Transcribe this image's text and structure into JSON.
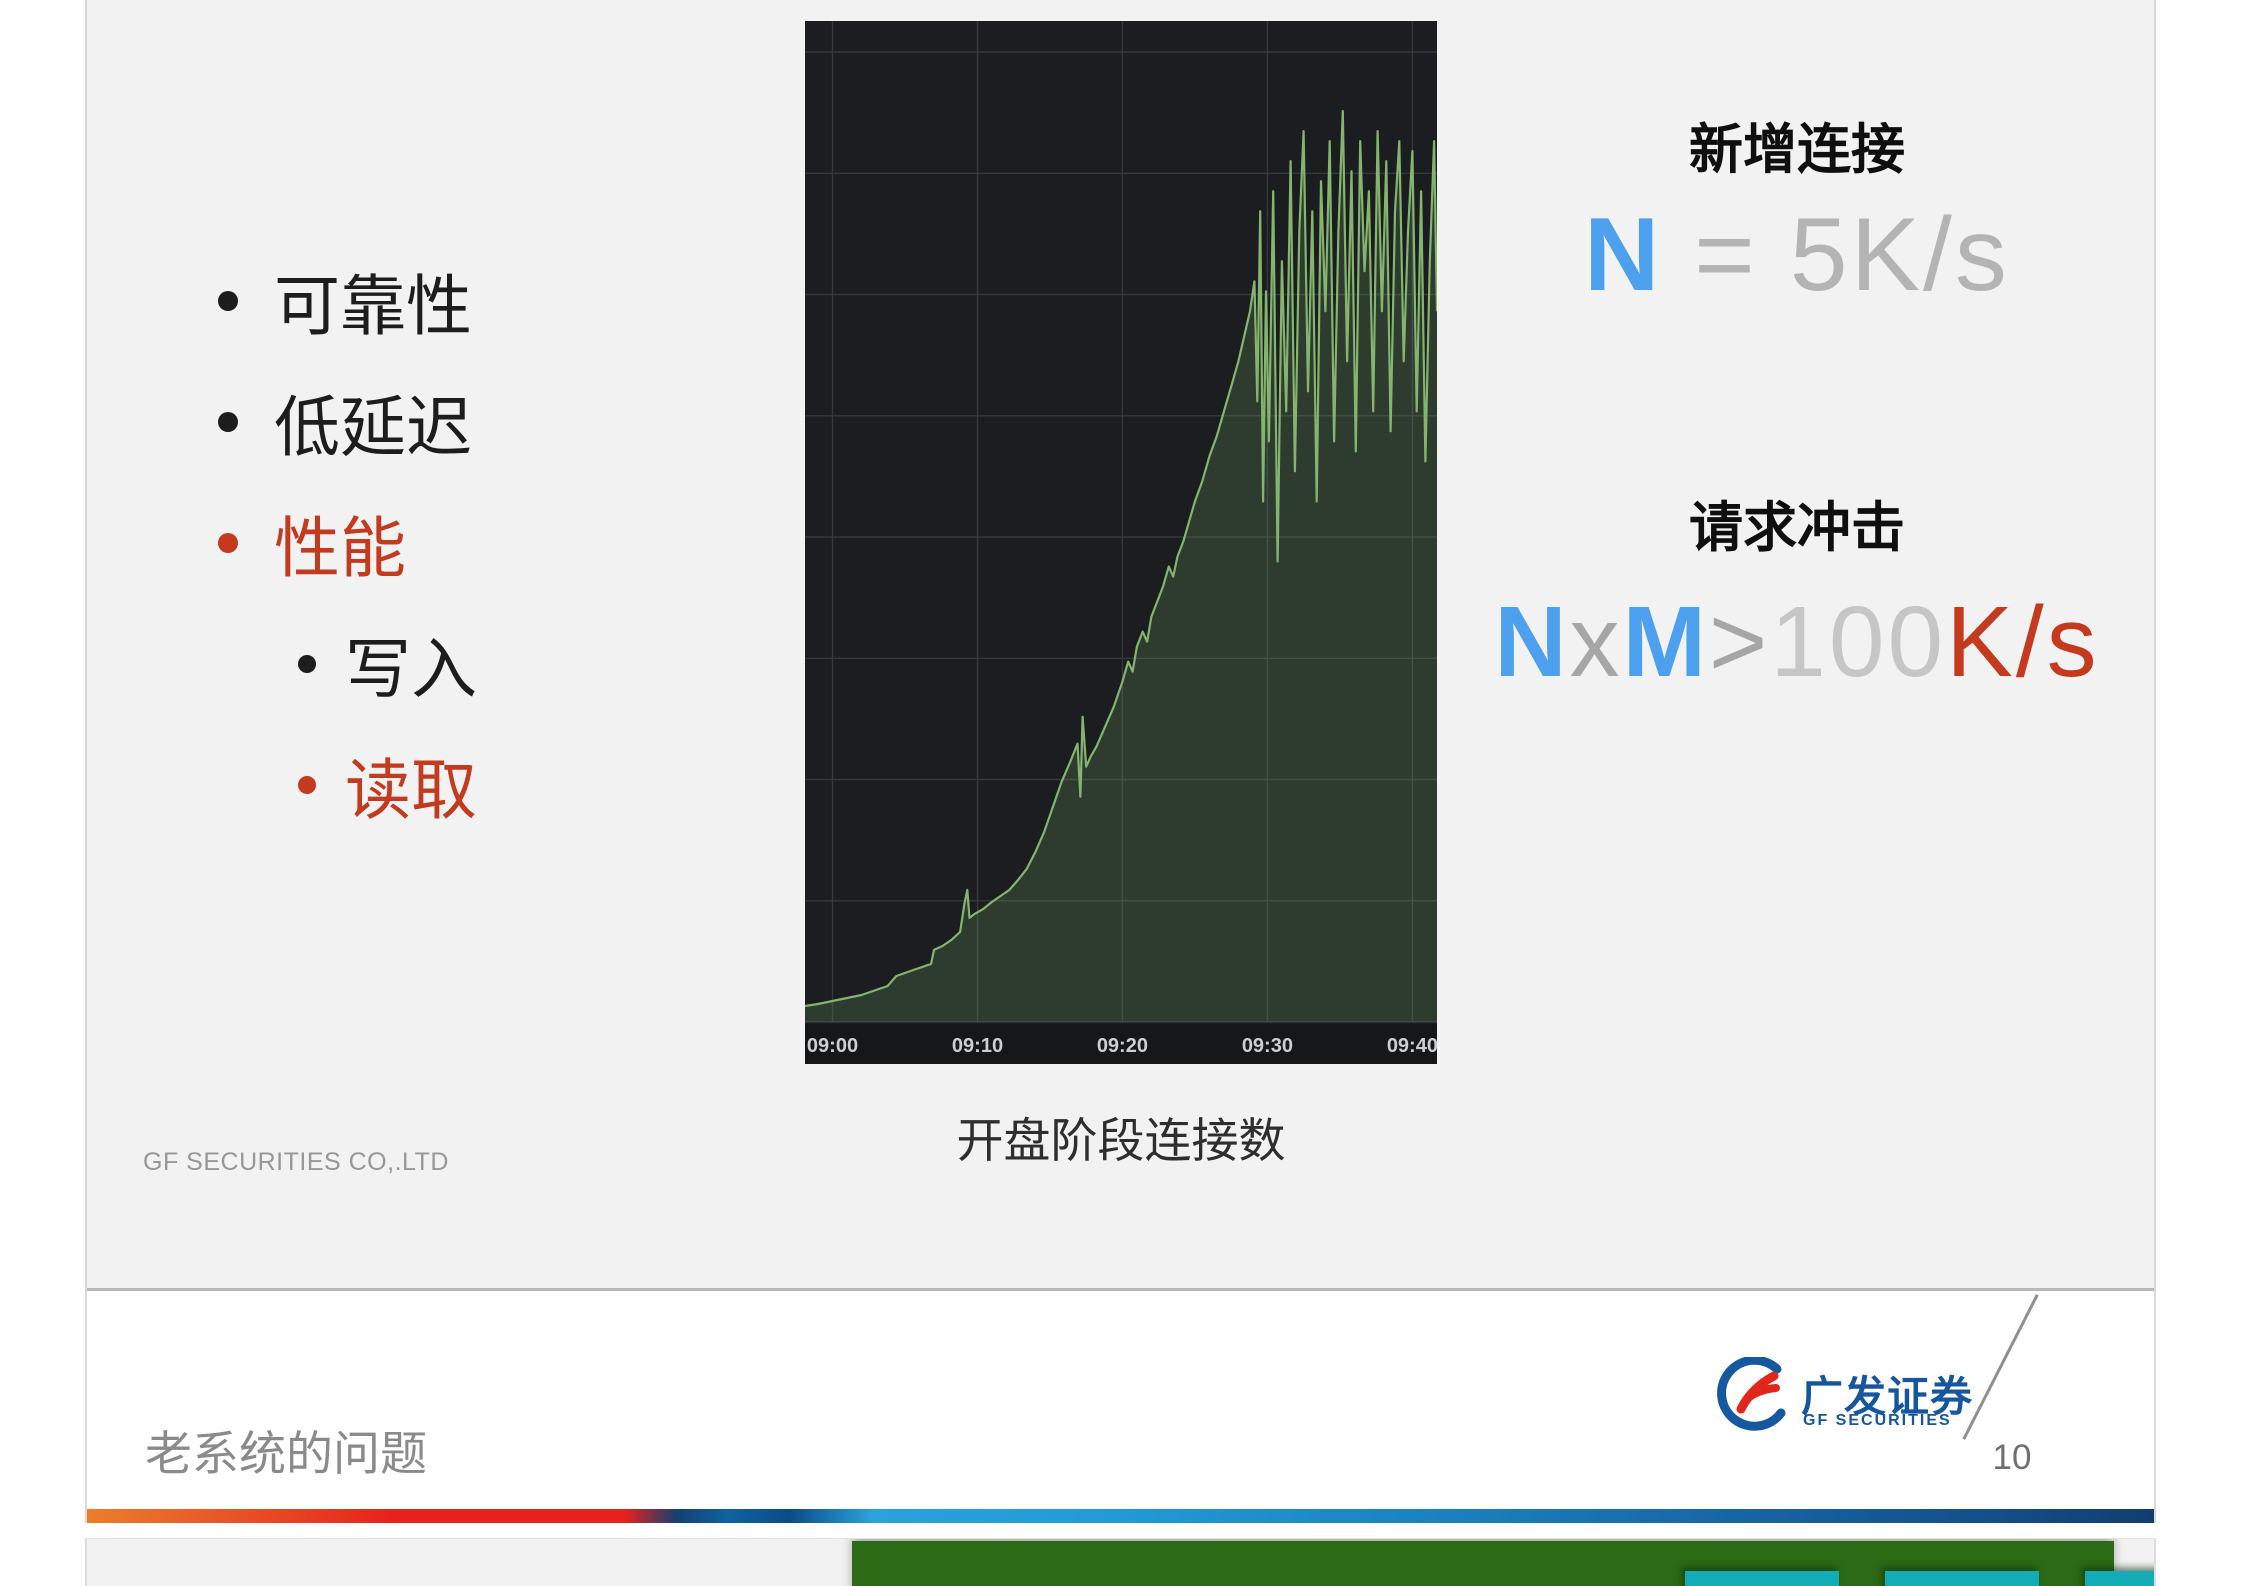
{
  "slide": {
    "bullets": [
      {
        "label": "可靠性",
        "color": "black",
        "level": 1
      },
      {
        "label": "低延迟",
        "color": "black",
        "level": 1
      },
      {
        "label": "性能",
        "color": "red",
        "level": 1
      },
      {
        "label": "写入",
        "color": "black",
        "level": 2
      },
      {
        "label": "读取",
        "color": "red",
        "level": 2
      }
    ],
    "chart_caption": "开盘阶段连接数",
    "watermark": "GF SECURITIES CO,.LTD",
    "right_panel": {
      "heading1": "新增连接",
      "formula1": [
        {
          "text": "N",
          "role": "blue-bold"
        },
        {
          "text": " = ",
          "role": "gray"
        },
        {
          "text": "5K/s",
          "role": "gray"
        }
      ],
      "heading2": "请求冲击",
      "formula2": [
        {
          "text": "N",
          "role": "blue-bold"
        },
        {
          "text": "x",
          "role": "gray"
        },
        {
          "text": "M",
          "role": "blue-bold"
        },
        {
          "text": ">",
          "role": "gray"
        },
        {
          "text": "100",
          "role": "light-gray"
        },
        {
          "text": "K/s",
          "role": "red"
        }
      ]
    },
    "footer": {
      "title": "老系统的问题",
      "logo_cn": "广发证券",
      "logo_en": "GF SECURITIES",
      "page_number": "10"
    }
  },
  "chart_data": {
    "type": "area",
    "title": "",
    "caption": "开盘阶段连接数",
    "x_axis": {
      "ticks": [
        "09:00",
        "09:10",
        "09:20",
        "09:30",
        "09:40"
      ],
      "tick_minutes": [
        0,
        10,
        20,
        30,
        40
      ],
      "visible_range_minutes": [
        -1.9,
        41.7
      ]
    },
    "y_axis": {
      "labels_visible": false,
      "unit": "percent_of_plot_height",
      "range": [
        0,
        100
      ]
    },
    "grid": true,
    "legend": false,
    "series": [
      {
        "name": "connections",
        "color": "#84b46e",
        "fill": "rgba(126,178,109,0.20)",
        "points": [
          [
            -1.9,
            1.6
          ],
          [
            -1,
            1.8
          ],
          [
            0,
            2.1
          ],
          [
            1,
            2.4
          ],
          [
            2,
            2.7
          ],
          [
            3,
            3.2
          ],
          [
            3.8,
            3.6
          ],
          [
            4.4,
            4.6
          ],
          [
            4.8,
            4.8
          ],
          [
            5.6,
            5.2
          ],
          [
            6.2,
            5.5
          ],
          [
            6.8,
            5.8
          ],
          [
            7.0,
            7.2
          ],
          [
            7.6,
            7.6
          ],
          [
            8.2,
            8.2
          ],
          [
            8.8,
            9.0
          ],
          [
            9.1,
            11.8
          ],
          [
            9.3,
            13.2
          ],
          [
            9.45,
            10.4
          ],
          [
            9.8,
            10.8
          ],
          [
            10.4,
            11.3
          ],
          [
            11,
            12
          ],
          [
            11.6,
            12.6
          ],
          [
            12.2,
            13.2
          ],
          [
            12.8,
            14.2
          ],
          [
            13.4,
            15.3
          ],
          [
            14,
            17
          ],
          [
            14.6,
            19
          ],
          [
            15.2,
            21.5
          ],
          [
            15.8,
            24
          ],
          [
            16.4,
            26
          ],
          [
            16.9,
            27.8
          ],
          [
            17.1,
            22.5
          ],
          [
            17.25,
            30.5
          ],
          [
            17.5,
            25.5
          ],
          [
            17.8,
            26.5
          ],
          [
            18.2,
            27.5
          ],
          [
            18.8,
            29.5
          ],
          [
            19.4,
            31.5
          ],
          [
            20,
            34
          ],
          [
            20.4,
            36
          ],
          [
            20.7,
            35
          ],
          [
            21,
            37.5
          ],
          [
            21.4,
            39
          ],
          [
            21.7,
            38
          ],
          [
            22,
            40.5
          ],
          [
            22.4,
            42
          ],
          [
            22.8,
            43.5
          ],
          [
            23.2,
            45.5
          ],
          [
            23.5,
            44.5
          ],
          [
            23.8,
            46.5
          ],
          [
            24.2,
            48
          ],
          [
            24.6,
            50
          ],
          [
            25,
            52
          ],
          [
            25.5,
            54
          ],
          [
            26,
            56.5
          ],
          [
            26.5,
            58.5
          ],
          [
            27,
            61
          ],
          [
            27.5,
            63.5
          ],
          [
            28,
            66
          ],
          [
            28.4,
            68.5
          ],
          [
            28.8,
            71
          ],
          [
            29.1,
            74
          ],
          [
            29.3,
            62
          ],
          [
            29.5,
            81
          ],
          [
            29.7,
            52
          ],
          [
            29.9,
            73
          ],
          [
            30.1,
            58
          ],
          [
            30.4,
            83
          ],
          [
            30.7,
            46
          ],
          [
            31,
            76
          ],
          [
            31.3,
            61
          ],
          [
            31.6,
            86
          ],
          [
            31.9,
            55
          ],
          [
            32.2,
            79
          ],
          [
            32.5,
            89
          ],
          [
            32.8,
            63
          ],
          [
            33.1,
            81
          ],
          [
            33.4,
            52
          ],
          [
            33.7,
            84
          ],
          [
            34,
            71
          ],
          [
            34.3,
            88
          ],
          [
            34.6,
            58
          ],
          [
            34.9,
            79
          ],
          [
            35.2,
            91
          ],
          [
            35.5,
            66
          ],
          [
            35.8,
            85
          ],
          [
            36.1,
            57
          ],
          [
            36.4,
            88
          ],
          [
            36.7,
            75
          ],
          [
            37,
            83
          ],
          [
            37.3,
            61
          ],
          [
            37.6,
            89
          ],
          [
            37.9,
            71
          ],
          [
            38.2,
            86
          ],
          [
            38.5,
            59
          ],
          [
            38.8,
            81
          ],
          [
            39.1,
            88
          ],
          [
            39.4,
            66
          ],
          [
            39.7,
            79
          ],
          [
            40,
            87
          ],
          [
            40.3,
            61
          ],
          [
            40.6,
            83
          ],
          [
            40.9,
            56
          ],
          [
            41.2,
            76
          ],
          [
            41.5,
            88
          ],
          [
            41.7,
            71
          ]
        ]
      }
    ]
  },
  "colors": {
    "accent_blue": "#4da0ee",
    "accent_red": "#c33a1e",
    "formula_gray": "#b4b4b4",
    "formula_light_gray": "#c6c6c6",
    "formula_x_gray": "#a6a6a6",
    "text_black": "#1d1d1d",
    "heading_black": "#0f0f0f",
    "caption_gray": "#2e2e2e",
    "footer_gray": "#8a8a8a",
    "watermark_gray": "#979797",
    "page_number_gray": "#6f6f6f",
    "logo_blue": "#15569e",
    "logo_red": "#e2261c",
    "slide_bg": "#f2f2f2",
    "chart_bg": "#1b1d20",
    "chart_axis_bg": "#151719",
    "chart_grid": "#35383d",
    "chart_line": "#84b46e",
    "chart_tick_text": "#cdced0",
    "stripe_orange": "#eb7e2c",
    "stripe_red": "#e7211c",
    "stripe_navy": "#16406f",
    "stripe_blue": "#2aa3dc",
    "next_slide_green": "#2c6a15",
    "next_slide_teal": "#13acb9"
  }
}
